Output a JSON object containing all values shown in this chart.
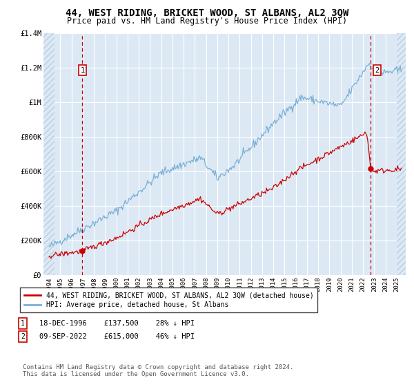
{
  "title": "44, WEST RIDING, BRICKET WOOD, ST ALBANS, AL2 3QW",
  "subtitle": "Price paid vs. HM Land Registry's House Price Index (HPI)",
  "title_fontsize": 10,
  "subtitle_fontsize": 8.5,
  "background_color": "#ffffff",
  "plot_bg_color": "#dce9f5",
  "hatch_color": "#b8cfe0",
  "grid_color": "#ffffff",
  "red_line_color": "#cc0000",
  "blue_line_color": "#7aafd4",
  "ylim": [
    0,
    1400000
  ],
  "yticks": [
    0,
    200000,
    400000,
    600000,
    800000,
    1000000,
    1200000,
    1400000
  ],
  "ytick_labels": [
    "£0",
    "£200K",
    "£400K",
    "£600K",
    "£800K",
    "£1M",
    "£1.2M",
    "£1.4M"
  ],
  "xlim_start": 1993.5,
  "xlim_end": 2025.8,
  "hatch_left_end": 1994.5,
  "hatch_right_start": 2025.0,
  "xticks": [
    1994,
    1995,
    1996,
    1997,
    1998,
    1999,
    2000,
    2001,
    2002,
    2003,
    2004,
    2005,
    2006,
    2007,
    2008,
    2009,
    2010,
    2011,
    2012,
    2013,
    2014,
    2015,
    2016,
    2017,
    2018,
    2019,
    2020,
    2021,
    2022,
    2023,
    2024,
    2025
  ],
  "marker1_x": 1996.97,
  "marker1_y": 137500,
  "marker1_label": "1",
  "marker1_date": "18-DEC-1996",
  "marker1_price": "£137,500",
  "marker1_hpi": "28% ↓ HPI",
  "marker2_x": 2022.69,
  "marker2_y": 615000,
  "marker2_label": "2",
  "marker2_date": "09-SEP-2022",
  "marker2_price": "£615,000",
  "marker2_hpi": "46% ↓ HPI",
  "legend_line1": "44, WEST RIDING, BRICKET WOOD, ST ALBANS, AL2 3QW (detached house)",
  "legend_line2": "HPI: Average price, detached house, St Albans",
  "footer": "Contains HM Land Registry data © Crown copyright and database right 2024.\nThis data is licensed under the Open Government Licence v3.0."
}
